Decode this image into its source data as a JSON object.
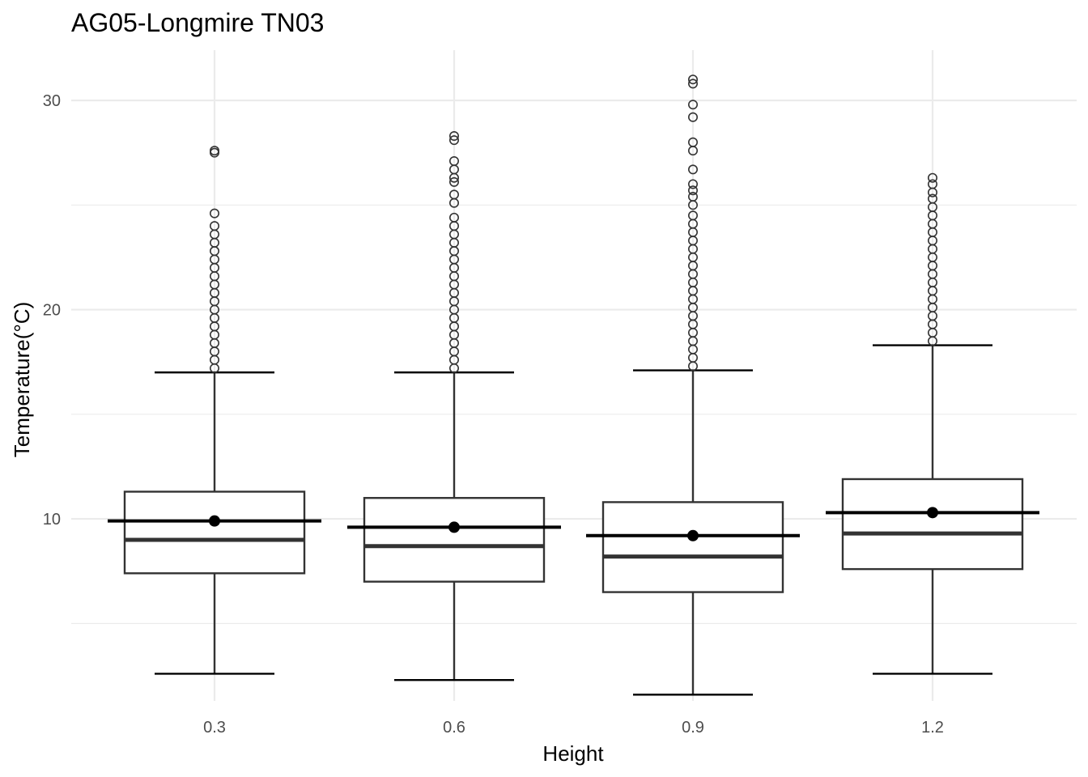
{
  "chart_data": {
    "type": "boxplot",
    "title": "AG05-Longmire TN03",
    "xlabel": "Height",
    "ylabel": "Temperature(°C)",
    "categories": [
      "0.3",
      "0.6",
      "0.9",
      "1.2"
    ],
    "ylim": [
      1.3,
      32.4
    ],
    "yticks": [
      10,
      20,
      30
    ],
    "yticklabels": [
      "10",
      "20",
      "30"
    ],
    "ygrid_minor": [
      5,
      15,
      25
    ],
    "grid": true,
    "legend": "none",
    "colors": {
      "box_stroke": "#333333",
      "mean": "#000000",
      "grid": "#ebebeb"
    },
    "boxes": [
      {
        "category": "0.3",
        "whisker_low": 2.6,
        "q1": 7.4,
        "median": 9.0,
        "q3": 11.3,
        "whisker_high": 17.0,
        "mean": 9.9,
        "outliers": [
          17.2,
          17.6,
          18.0,
          18.4,
          18.8,
          19.2,
          19.6,
          20.0,
          20.4,
          20.8,
          21.2,
          21.6,
          22.0,
          22.4,
          22.8,
          23.2,
          23.6,
          24.0,
          24.6,
          27.5,
          27.6
        ]
      },
      {
        "category": "0.6",
        "whisker_low": 2.3,
        "q1": 7.0,
        "median": 8.7,
        "q3": 11.0,
        "whisker_high": 17.0,
        "mean": 9.6,
        "outliers": [
          17.2,
          17.6,
          18.0,
          18.4,
          18.8,
          19.2,
          19.6,
          20.0,
          20.4,
          20.8,
          21.2,
          21.6,
          22.0,
          22.4,
          22.8,
          23.2,
          23.6,
          24.0,
          24.4,
          25.1,
          25.5,
          26.1,
          26.3,
          26.7,
          27.1,
          28.1,
          28.3
        ]
      },
      {
        "category": "0.9",
        "whisker_low": 1.6,
        "q1": 6.5,
        "median": 8.2,
        "q3": 10.8,
        "whisker_high": 17.1,
        "mean": 9.2,
        "outliers": [
          17.3,
          17.7,
          18.1,
          18.5,
          18.9,
          19.3,
          19.7,
          20.1,
          20.5,
          20.9,
          21.3,
          21.7,
          22.1,
          22.5,
          22.9,
          23.3,
          23.7,
          24.1,
          24.5,
          25.0,
          25.4,
          25.7,
          26.0,
          26.7,
          27.6,
          28.0,
          29.2,
          29.8,
          30.8,
          31.0
        ]
      },
      {
        "category": "1.2",
        "whisker_low": 2.6,
        "q1": 7.6,
        "median": 9.3,
        "q3": 11.9,
        "whisker_high": 18.3,
        "mean": 10.3,
        "outliers": [
          18.5,
          18.9,
          19.3,
          19.7,
          20.1,
          20.5,
          20.9,
          21.3,
          21.7,
          22.1,
          22.5,
          22.9,
          23.3,
          23.7,
          24.1,
          24.5,
          24.9,
          25.3,
          25.6,
          26.0,
          26.3
        ]
      }
    ]
  }
}
